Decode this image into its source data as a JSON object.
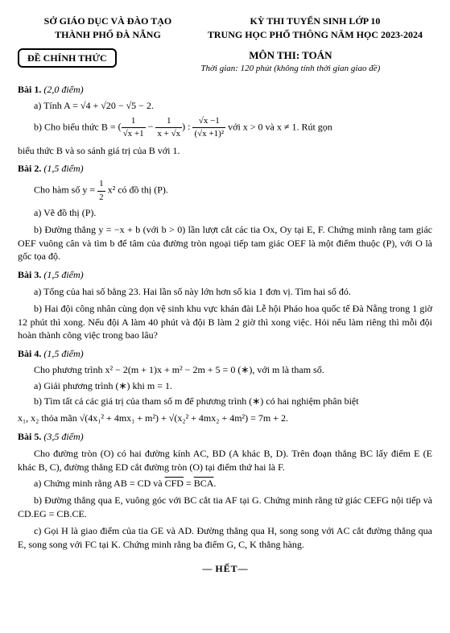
{
  "header": {
    "left_line1": "SỞ GIÁO DỤC VÀ ĐÀO TẠO",
    "left_line2": "THÀNH PHỐ ĐÀ NẴNG",
    "right_line1": "KỲ THI TUYỂN SINH LỚP 10",
    "right_line2": "TRUNG HỌC PHỔ THÔNG NĂM HỌC 2023-2024"
  },
  "official": "ĐỀ CHÍNH THỨC",
  "subject": {
    "title": "MÔN THI: TOÁN",
    "time": "Thời gian: 120 phút (không tính thời gian giao đề)"
  },
  "b1": {
    "title": "Bài 1.",
    "pts": "(2,0 điểm)",
    "a_pre": "a) Tính A = ",
    "a_expr": "√4 + √20 − √5 − 2.",
    "b_pre": "b) Cho biểu thức B = ",
    "b_cond": " với x > 0 và x ≠ 1. Rút gọn",
    "b_tail": "biểu thức B và so sánh giá trị của B với 1."
  },
  "b2": {
    "title": "Bài 2.",
    "pts": "(1,5 điểm)",
    "intro_pre": "Cho hàm số y = ",
    "intro_post": " x² có đồ thị (P).",
    "a": "a) Vẽ đồ thị (P).",
    "b": "b) Đường thẳng y = −x + b (với b > 0) lần lượt cắt các tia Ox, Oy tại E, F. Chứng minh rằng tam giác OEF vuông cân và tìm b để tâm của đường tròn ngoại tiếp tam giác OEF là một điểm thuộc (P), với O là gốc tọa độ."
  },
  "b3": {
    "title": "Bài 3.",
    "pts": "(1,5 điểm)",
    "a": "a) Tổng của hai số bằng 23. Hai lần số này lớn hơn số kia 1 đơn vị. Tìm hai số đó.",
    "b": "b) Hai đội công nhân cùng dọn vệ sinh khu vực khán đài Lễ hội Pháo hoa quốc tế Đà Nẵng trong 1 giờ 12 phút thì xong. Nếu đội A làm 40 phút và đội B làm 2 giờ thì xong việc. Hỏi nếu làm riêng thì mỗi đội hoàn thành công việc trong bao lâu?"
  },
  "b4": {
    "title": "Bài 4.",
    "pts": "(1,5 điểm)",
    "intro": "Cho phương trình x² − 2(m + 1)x + m² − 2m + 5 = 0  (∗), với m là tham số.",
    "a": "a) Giải phương trình (∗) khi m = 1.",
    "b_pre": "b) Tìm tất cả các giá trị của tham số m để phương trình (∗) có hai nghiệm phân biệt",
    "b_line2_pre": "x₁, x₂ thỏa mãn ",
    "b_expr": "√(4x₁² + 4mx₁ + m²) + √(x₂² + 4mx₂ + 4m²) = 7m + 2."
  },
  "b5": {
    "title": "Bài 5.",
    "pts": "(3,5 điểm)",
    "intro": "Cho đường tròn (O) có hai đường kính AC, BD (A khác B, D). Trên đoạn thẳng BC lấy điểm E (E khác B, C), đường thẳng ED cắt đường tròn (O) tại điểm thứ hai là F.",
    "a_pre": "a) Chứng minh rằng AB = CD và ",
    "a_arc1": "CFD",
    "a_mid": " = ",
    "a_arc2": "BCA",
    "a_post": ".",
    "b": "b) Đường thẳng qua E, vuông góc với BC cắt tia AF tại G. Chứng minh rằng tứ giác CEFG nội tiếp và CD.EG = CB.CE.",
    "c": "c) Gọi H là giao điểm của tia GE và AD. Đường thẳng qua H, song song với AC cắt đường thẳng qua E, song song với FC tại K. Chứng minh rằng ba điểm G, C, K thẳng hàng."
  },
  "het": " HẾT"
}
